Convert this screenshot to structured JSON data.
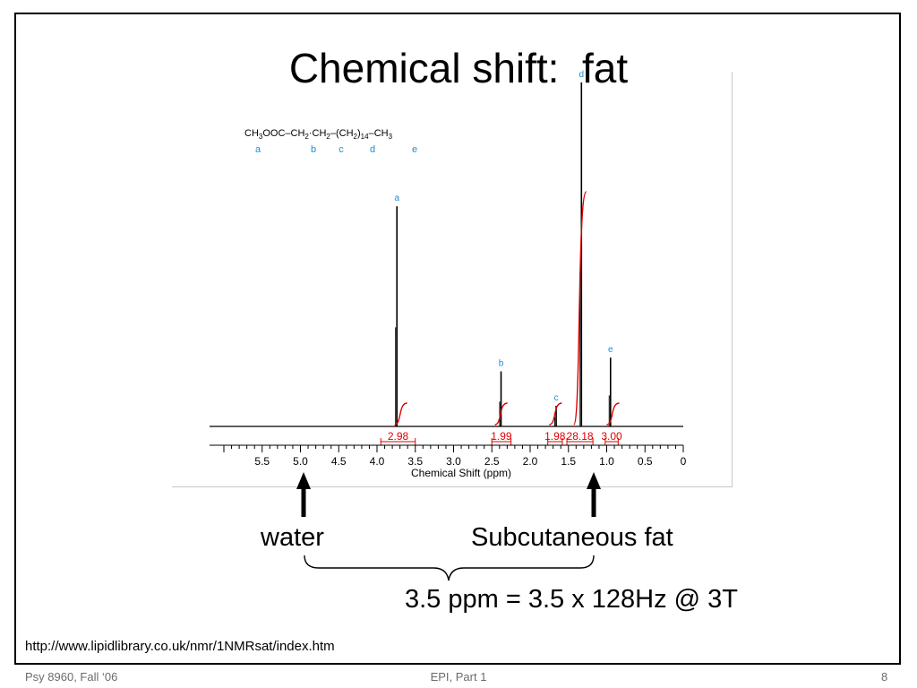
{
  "slide": {
    "title": "Chemical shift:  fat",
    "water_label": "water",
    "fat_label": "Subcutaneous fat",
    "equation": "3.5 ppm = 3.5 x 128Hz @ 3T",
    "url": "http://www.lipidlibrary.co.uk/nmr/1NMRsat/index.htm",
    "footer_left": "Psy 8960, Fall ‘06",
    "footer_center": "EPI, Part 1",
    "footer_right": "8"
  },
  "chart_data": {
    "type": "line",
    "xlabel": "Chemical Shift (ppm)",
    "x_ticks": [
      "5.5",
      "5.0",
      "4.5",
      "4.0",
      "3.5",
      "3.0",
      "2.5",
      "2.0",
      "1.5",
      "1.0",
      "0.5",
      "0"
    ],
    "xlim": [
      5.95,
      0
    ],
    "x_reversed": true,
    "molecule_formula": {
      "segments": [
        {
          "t": "CH",
          "sub": "3"
        },
        {
          "t": "OOC–CH",
          "sub": "2"
        },
        {
          "t": "·CH",
          "sub": "2"
        },
        {
          "t": "–(CH",
          "sub": "2"
        },
        {
          "t": ")",
          "sub": "14"
        },
        {
          "t": "–CH",
          "sub": "3"
        }
      ],
      "group_labels": [
        "a",
        "b",
        "c",
        "d",
        "e"
      ]
    },
    "peaks": [
      {
        "label": "a",
        "ppm": 3.74,
        "height": 0.64
      },
      {
        "label": "b",
        "ppm": 2.38,
        "height": 0.16
      },
      {
        "label": "c",
        "ppm": 1.66,
        "height": 0.06
      },
      {
        "label": "d",
        "ppm": 1.33,
        "height": 1.0
      },
      {
        "label": "e",
        "ppm": 0.95,
        "height": 0.2
      }
    ],
    "integrals": [
      {
        "value": "2.98",
        "from": 3.95,
        "to": 3.5,
        "ppm_label": 3.7
      },
      {
        "value": "1.99",
        "from": 2.5,
        "to": 2.25,
        "ppm_label": 2.39
      },
      {
        "value": "1.98",
        "from": 1.77,
        "to": 1.58,
        "ppm_label": 1.68
      },
      {
        "value": "28.18",
        "from": 1.52,
        "to": 1.18,
        "ppm_label": 1.36
      },
      {
        "value": "3.00",
        "from": 1.02,
        "to": 0.85,
        "ppm_label": 0.93
      }
    ],
    "marked_positions": [
      {
        "label": "water",
        "ppm": 4.7
      },
      {
        "label": "Subcutaneous fat",
        "ppm": 1.3
      }
    ],
    "colors": {
      "trace": "#000000",
      "integral": "#e00000",
      "peak_label": "#1a8fd6",
      "axis": "#000000"
    }
  }
}
